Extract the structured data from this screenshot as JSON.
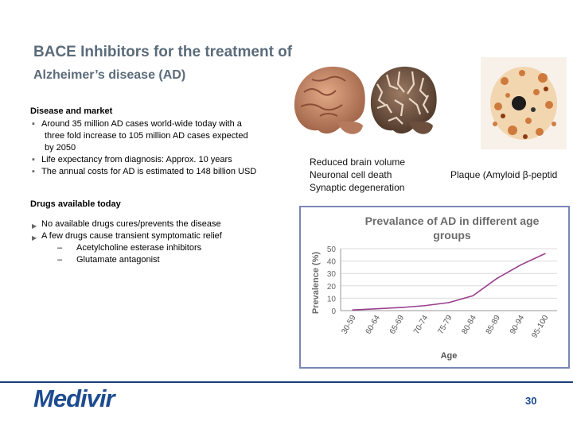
{
  "title": {
    "line1": "BACE Inhibitors for the treatment of",
    "line2": "Alzheimer’s disease (AD)"
  },
  "disease": {
    "heading": "Disease and market",
    "bullets": [
      "Around 35 million AD cases world-wide today with a",
      "Life expectancy from diagnosis: Approx. 10 years",
      "The annual costs  for AD is estimated to 148 billion USD"
    ],
    "bullet1_cont1": "three fold increase to 105 million AD cases expected",
    "bullet1_cont2": "by 2050"
  },
  "drugs": {
    "heading": "Drugs available today",
    "bullets": [
      "No available drugs cures/prevents the disease",
      "A few drugs cause transient symptomatic relief"
    ],
    "sub": [
      "Acetylcholine esterase inhibitors",
      "Glutamate antagonist"
    ]
  },
  "brain_caption": {
    "line1": "Reduced brain volume",
    "line2": "Neuronal cell death",
    "line3": "Synaptic degeneration"
  },
  "plaque_caption": "Plaque (Amyloid β-peptid",
  "chart_data": {
    "type": "line",
    "title_line1": "Prevalance of AD in different age",
    "title_line2": "groups",
    "xlabel": "Age",
    "ylabel": "Prevalence (%)",
    "ylim": [
      0,
      50
    ],
    "yticks": [
      "0",
      "10",
      "20",
      "30",
      "40",
      "50"
    ],
    "categories": [
      "30-59",
      "60-64",
      "65-69",
      "70-74",
      "75-79",
      "80-84",
      "85-89",
      "90-94",
      "95-100"
    ],
    "values": [
      0.5,
      1.5,
      2.5,
      4,
      6.5,
      12,
      26,
      37,
      46
    ],
    "color": "#993f8e",
    "grid": true
  },
  "footer": {
    "logo": "Medivir",
    "page": "30"
  }
}
